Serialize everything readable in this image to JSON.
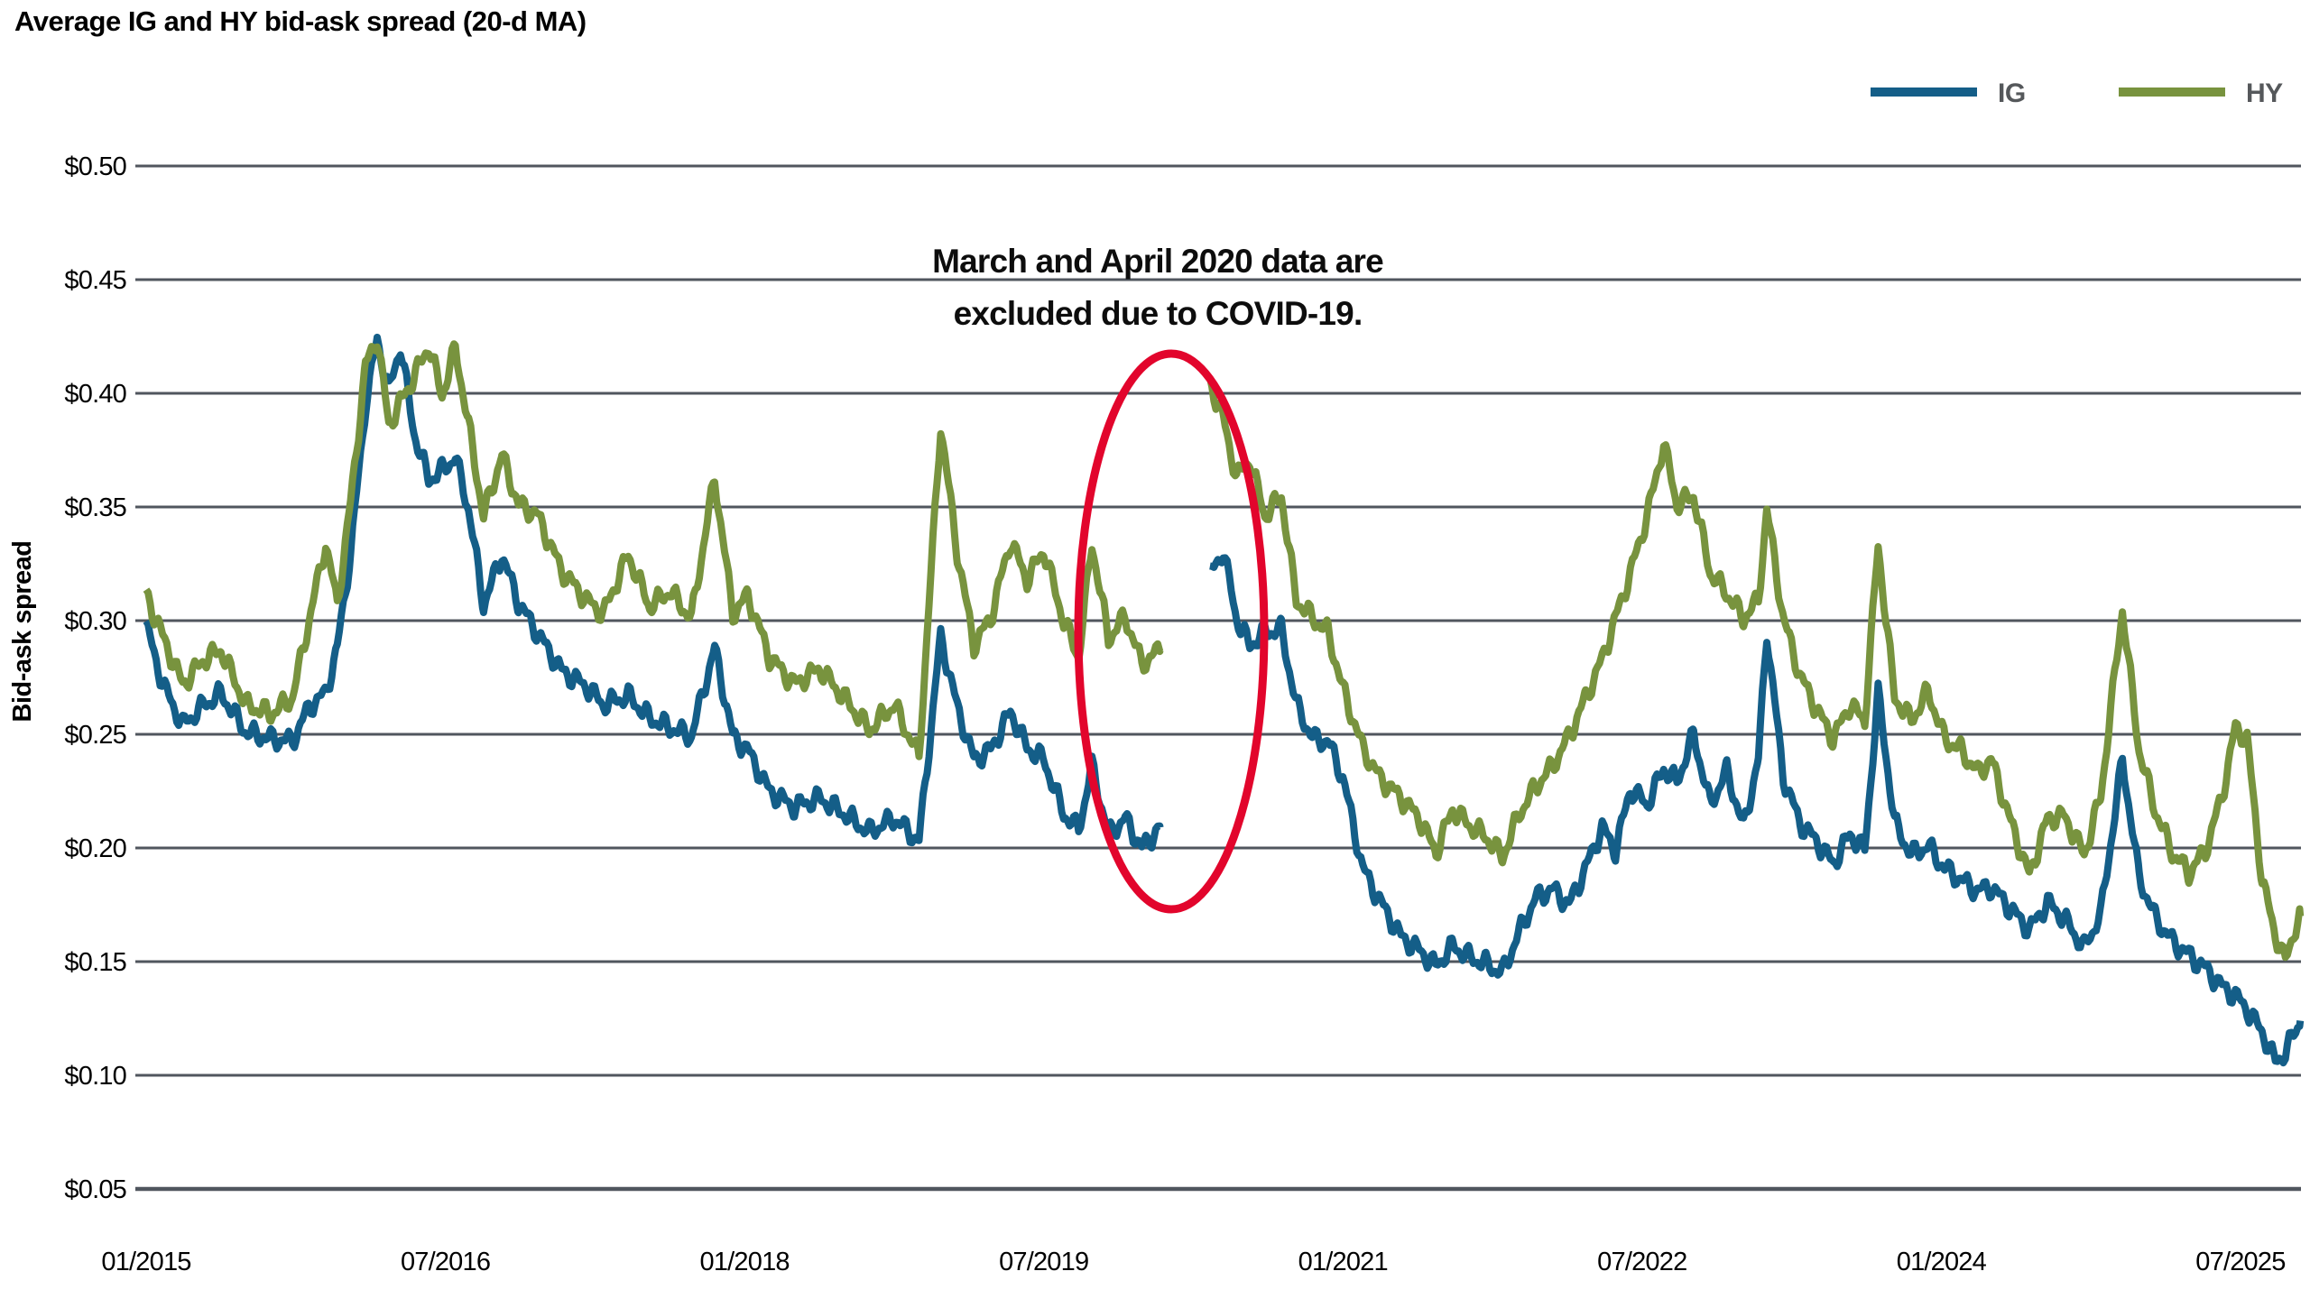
{
  "title": "Average IG and HY bid-ask spread (20-d MA)",
  "legend": [
    {
      "label": "IG",
      "color": "#145E88"
    },
    {
      "label": "HY",
      "color": "#78933E"
    }
  ],
  "y_axis": {
    "title": "Bid-ask spread",
    "ticks": [
      "$0.50",
      "$0.45",
      "$0.40",
      "$0.35",
      "$0.30",
      "$0.25",
      "$0.20",
      "$0.15",
      "$0.10",
      "$0.05"
    ],
    "min": 0.05,
    "max": 0.5,
    "gridlines": true,
    "gridline_color": "#50565e"
  },
  "x_axis": {
    "ticks": [
      "01/2015",
      "07/2016",
      "01/2018",
      "07/2019",
      "01/2021",
      "07/2022",
      "01/2024",
      "07/2025"
    ]
  },
  "annotation": {
    "line1": "March and April 2020 data are",
    "line2": "excluded due to COVID-19.",
    "ellipse_color": "#E2052C"
  },
  "chart_data": {
    "type": "line",
    "title": "Average IG and HY bid-ask spread (20-d MA)",
    "xlabel": "",
    "ylabel": "Bid-ask spread",
    "ylim": [
      0.05,
      0.5
    ],
    "x_unit": "months_since_2015_01",
    "x_range_labels": [
      "01/2015",
      "10/2025"
    ],
    "legend_position": "top-right",
    "grid": "horizontal",
    "gap": {
      "from": "2020-03",
      "to": "2020-04",
      "reason": "excluded due to COVID-19"
    },
    "series": [
      {
        "name": "IG",
        "color": "#145E88",
        "segments": [
          [
            [
              0,
              0.298
            ],
            [
              1,
              0.272
            ],
            [
              2.2,
              0.254
            ],
            [
              3.5,
              0.263
            ],
            [
              4.5,
              0.268
            ],
            [
              6,
              0.251
            ],
            [
              7.5,
              0.248
            ],
            [
              8.8,
              0.247
            ],
            [
              9.8,
              0.262
            ],
            [
              10.8,
              0.268
            ],
            [
              11.5,
              0.288
            ],
            [
              12.3,
              0.33
            ],
            [
              13.2,
              0.395
            ],
            [
              13.9,
              0.424
            ],
            [
              14.6,
              0.401
            ],
            [
              15.3,
              0.421
            ],
            [
              16.1,
              0.383
            ],
            [
              17,
              0.362
            ],
            [
              17.8,
              0.366
            ],
            [
              18.6,
              0.372
            ],
            [
              19.4,
              0.349
            ],
            [
              20.3,
              0.307
            ],
            [
              21.4,
              0.329
            ],
            [
              22.4,
              0.308
            ],
            [
              23.5,
              0.295
            ],
            [
              25,
              0.278
            ],
            [
              26.5,
              0.271
            ],
            [
              27.5,
              0.263
            ],
            [
              29,
              0.267
            ],
            [
              30.3,
              0.257
            ],
            [
              31.5,
              0.253
            ],
            [
              32.8,
              0.249
            ],
            [
              34.2,
              0.288
            ],
            [
              35.3,
              0.249
            ],
            [
              36.2,
              0.243
            ],
            [
              37.5,
              0.225
            ],
            [
              39,
              0.218
            ],
            [
              40.5,
              0.222
            ],
            [
              42,
              0.215
            ],
            [
              43.5,
              0.207
            ],
            [
              45,
              0.213
            ],
            [
              46.5,
              0.203
            ],
            [
              47.8,
              0.293
            ],
            [
              48.8,
              0.262
            ],
            [
              49.8,
              0.239
            ],
            [
              50.8,
              0.243
            ],
            [
              52,
              0.26
            ],
            [
              53,
              0.244
            ],
            [
              54,
              0.239
            ],
            [
              55.2,
              0.215
            ],
            [
              56.1,
              0.208
            ],
            [
              56.9,
              0.236
            ],
            [
              57.9,
              0.206
            ],
            [
              58.9,
              0.213
            ],
            [
              59.9,
              0.2
            ],
            [
              61,
              0.209
            ]
          ],
          [
            [
              64,
              0.32
            ],
            [
              64.8,
              0.331
            ],
            [
              65.6,
              0.301
            ],
            [
              66.4,
              0.289
            ],
            [
              67.3,
              0.295
            ],
            [
              68.3,
              0.296
            ],
            [
              69.2,
              0.263
            ],
            [
              70.2,
              0.248
            ],
            [
              71.1,
              0.247
            ],
            [
              72,
              0.231
            ],
            [
              73.2,
              0.191
            ],
            [
              74.2,
              0.177
            ],
            [
              75.5,
              0.161
            ],
            [
              76.6,
              0.155
            ],
            [
              77.6,
              0.148
            ],
            [
              78.6,
              0.157
            ],
            [
              79.6,
              0.152
            ],
            [
              80.6,
              0.149
            ],
            [
              81.6,
              0.145
            ],
            [
              82.6,
              0.163
            ],
            [
              83.6,
              0.178
            ],
            [
              84.6,
              0.182
            ],
            [
              85.6,
              0.175
            ],
            [
              86.6,
              0.191
            ],
            [
              87.6,
              0.209
            ],
            [
              88.4,
              0.199
            ],
            [
              89.3,
              0.226
            ],
            [
              90.3,
              0.219
            ],
            [
              91.3,
              0.235
            ],
            [
              92.1,
              0.229
            ],
            [
              93.1,
              0.25
            ],
            [
              94.1,
              0.219
            ],
            [
              95.1,
              0.234
            ],
            [
              96.1,
              0.209
            ],
            [
              97,
              0.239
            ],
            [
              97.5,
              0.295
            ],
            [
              98.5,
              0.231
            ],
            [
              99.5,
              0.211
            ],
            [
              100.5,
              0.203
            ],
            [
              101.5,
              0.193
            ],
            [
              102.5,
              0.206
            ],
            [
              103.4,
              0.199
            ],
            [
              104.2,
              0.268
            ],
            [
              105.2,
              0.211
            ],
            [
              106.2,
              0.197
            ],
            [
              107.2,
              0.201
            ],
            [
              108.2,
              0.191
            ],
            [
              109.2,
              0.186
            ],
            [
              110.2,
              0.181
            ],
            [
              111,
              0.183
            ],
            [
              112.2,
              0.173
            ],
            [
              113.3,
              0.164
            ],
            [
              114.4,
              0.176
            ],
            [
              115.4,
              0.169
            ],
            [
              116.6,
              0.156
            ],
            [
              117.6,
              0.171
            ],
            [
              118.9,
              0.239
            ],
            [
              119.9,
              0.187
            ],
            [
              120.9,
              0.169
            ],
            [
              121.9,
              0.159
            ],
            [
              122.9,
              0.153
            ],
            [
              123.9,
              0.147
            ],
            [
              124.9,
              0.139
            ],
            [
              125.7,
              0.135
            ],
            [
              126.4,
              0.129
            ],
            [
              127.3,
              0.119
            ],
            [
              128.1,
              0.106
            ],
            [
              128.7,
              0.11
            ],
            [
              129.2,
              0.118
            ],
            [
              129.6,
              0.124
            ]
          ]
        ]
      },
      {
        "name": "HY",
        "color": "#78933E",
        "segments": [
          [
            [
              0,
              0.312
            ],
            [
              1,
              0.293
            ],
            [
              2.2,
              0.272
            ],
            [
              3.5,
              0.283
            ],
            [
              4.5,
              0.287
            ],
            [
              6,
              0.263
            ],
            [
              7.5,
              0.259
            ],
            [
              8.8,
              0.266
            ],
            [
              9.8,
              0.3
            ],
            [
              10.8,
              0.334
            ],
            [
              11.5,
              0.307
            ],
            [
              12.3,
              0.352
            ],
            [
              13.2,
              0.412
            ],
            [
              13.9,
              0.425
            ],
            [
              14.6,
              0.386
            ],
            [
              15.3,
              0.396
            ],
            [
              16.1,
              0.407
            ],
            [
              17,
              0.421
            ],
            [
              17.8,
              0.399
            ],
            [
              18.6,
              0.42
            ],
            [
              19.4,
              0.386
            ],
            [
              20.3,
              0.346
            ],
            [
              21.4,
              0.373
            ],
            [
              22.4,
              0.351
            ],
            [
              23.5,
              0.347
            ],
            [
              25,
              0.322
            ],
            [
              26.5,
              0.309
            ],
            [
              27.5,
              0.303
            ],
            [
              29,
              0.329
            ],
            [
              30.3,
              0.306
            ],
            [
              31.5,
              0.313
            ],
            [
              32.8,
              0.301
            ],
            [
              34.2,
              0.363
            ],
            [
              35.3,
              0.303
            ],
            [
              36.2,
              0.311
            ],
            [
              37.5,
              0.284
            ],
            [
              39,
              0.272
            ],
            [
              40.5,
              0.279
            ],
            [
              42,
              0.266
            ],
            [
              43.5,
              0.252
            ],
            [
              45,
              0.263
            ],
            [
              46.5,
              0.24
            ],
            [
              47.8,
              0.386
            ],
            [
              48.8,
              0.33
            ],
            [
              49.8,
              0.289
            ],
            [
              50.8,
              0.301
            ],
            [
              52,
              0.335
            ],
            [
              53,
              0.318
            ],
            [
              54,
              0.331
            ],
            [
              55.2,
              0.3
            ],
            [
              56.1,
              0.284
            ],
            [
              56.9,
              0.334
            ],
            [
              57.9,
              0.292
            ],
            [
              58.9,
              0.302
            ],
            [
              59.9,
              0.281
            ],
            [
              61,
              0.287
            ]
          ],
          [
            [
              64,
              0.405
            ],
            [
              64.8,
              0.389
            ],
            [
              65.6,
              0.363
            ],
            [
              66.4,
              0.371
            ],
            [
              67.3,
              0.346
            ],
            [
              68.3,
              0.355
            ],
            [
              69.2,
              0.309
            ],
            [
              70.2,
              0.301
            ],
            [
              71.1,
              0.295
            ],
            [
              72,
              0.27
            ],
            [
              73.2,
              0.244
            ],
            [
              74.2,
              0.231
            ],
            [
              75.5,
              0.222
            ],
            [
              76.6,
              0.213
            ],
            [
              77.6,
              0.198
            ],
            [
              78.6,
              0.217
            ],
            [
              79.6,
              0.21
            ],
            [
              80.6,
              0.205
            ],
            [
              81.6,
              0.196
            ],
            [
              82.6,
              0.215
            ],
            [
              83.6,
              0.227
            ],
            [
              84.6,
              0.236
            ],
            [
              85.6,
              0.249
            ],
            [
              86.6,
              0.266
            ],
            [
              87.6,
              0.283
            ],
            [
              88.4,
              0.301
            ],
            [
              89.3,
              0.321
            ],
            [
              90.3,
              0.346
            ],
            [
              91.3,
              0.378
            ],
            [
              92.1,
              0.351
            ],
            [
              93.1,
              0.355
            ],
            [
              94.1,
              0.321
            ],
            [
              95.1,
              0.312
            ],
            [
              96.1,
              0.301
            ],
            [
              97,
              0.309
            ],
            [
              97.5,
              0.349
            ],
            [
              98.5,
              0.301
            ],
            [
              99.5,
              0.276
            ],
            [
              100.5,
              0.261
            ],
            [
              101.5,
              0.248
            ],
            [
              102.5,
              0.263
            ],
            [
              103.4,
              0.256
            ],
            [
              104.2,
              0.333
            ],
            [
              105.2,
              0.266
            ],
            [
              106.2,
              0.256
            ],
            [
              107.2,
              0.269
            ],
            [
              108.2,
              0.248
            ],
            [
              109.2,
              0.243
            ],
            [
              110.2,
              0.233
            ],
            [
              111,
              0.239
            ],
            [
              112.2,
              0.211
            ],
            [
              113.3,
              0.188
            ],
            [
              114.4,
              0.213
            ],
            [
              115.4,
              0.214
            ],
            [
              116.6,
              0.197
            ],
            [
              117.6,
              0.223
            ],
            [
              118.9,
              0.305
            ],
            [
              119.9,
              0.243
            ],
            [
              120.9,
              0.216
            ],
            [
              121.9,
              0.198
            ],
            [
              122.9,
              0.189
            ],
            [
              123.9,
              0.199
            ],
            [
              124.9,
              0.223
            ],
            [
              125.7,
              0.253
            ],
            [
              126.4,
              0.248
            ],
            [
              127.3,
              0.186
            ],
            [
              128.1,
              0.162
            ],
            [
              128.7,
              0.15
            ],
            [
              129.2,
              0.163
            ],
            [
              129.6,
              0.17
            ]
          ]
        ]
      }
    ]
  }
}
